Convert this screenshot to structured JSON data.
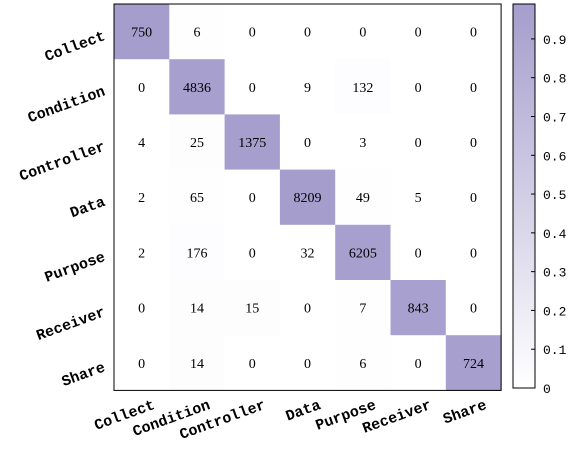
{
  "chart_data": {
    "type": "heatmap",
    "title": "",
    "xlabel": "",
    "ylabel": "",
    "rows": [
      "Collect",
      "Condition",
      "Controller",
      "Data",
      "Purpose",
      "Receiver",
      "Share"
    ],
    "columns": [
      "Collect",
      "Condition",
      "Controller",
      "Data",
      "Purpose",
      "Receiver",
      "Share"
    ],
    "values": [
      [
        750,
        6,
        0,
        0,
        0,
        0,
        0
      ],
      [
        0,
        4836,
        0,
        9,
        132,
        0,
        0
      ],
      [
        4,
        25,
        1375,
        0,
        3,
        0,
        0
      ],
      [
        2,
        65,
        0,
        8209,
        49,
        5,
        0
      ],
      [
        2,
        176,
        0,
        32,
        6205,
        0,
        0
      ],
      [
        0,
        14,
        15,
        0,
        7,
        843,
        0
      ],
      [
        0,
        14,
        0,
        0,
        6,
        0,
        724
      ]
    ],
    "color_scale": {
      "min": 0,
      "max": 0.99,
      "low_color": "#ffffff",
      "high_color": "#a59dcc",
      "ticks": [
        "0",
        "0.1",
        "0.2",
        "0.3",
        "0.4",
        "0.5",
        "0.6",
        "0.7",
        "0.8",
        "0.9"
      ]
    },
    "normalization": "row"
  }
}
